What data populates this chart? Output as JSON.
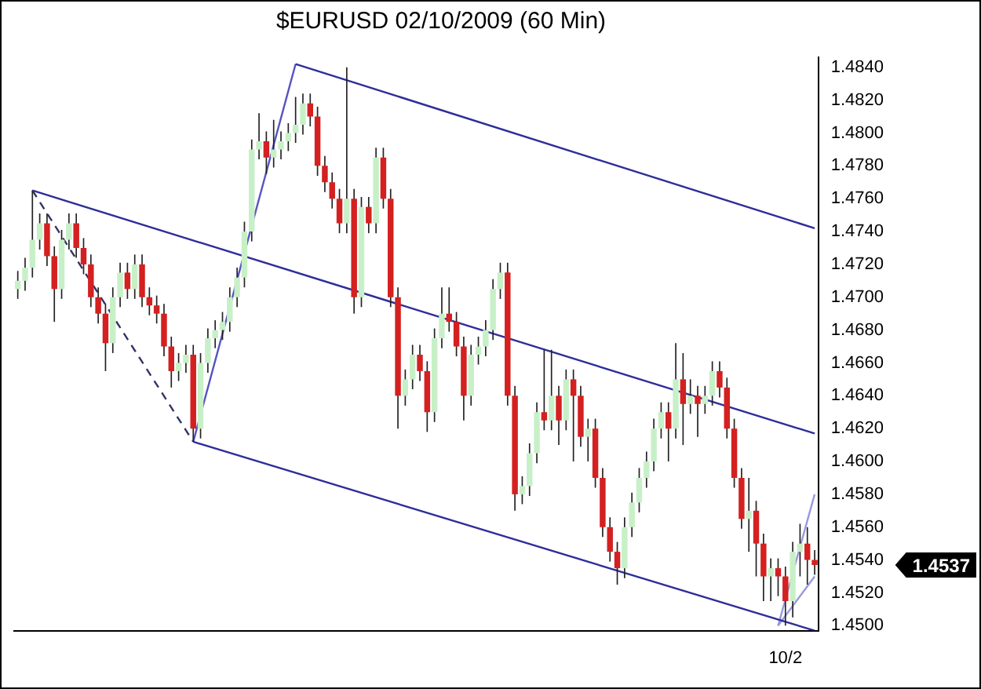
{
  "chart_data": {
    "type": "candlestick",
    "title": "$EURUSD  02/10/2009 (60 Min)",
    "categories": [
      null,
      null,
      null,
      null,
      null,
      null,
      null,
      null,
      null,
      null,
      null,
      null,
      null,
      null,
      null,
      null,
      null,
      null,
      null,
      null,
      null,
      null,
      null,
      null,
      null,
      null,
      null,
      null,
      null,
      null,
      null,
      null,
      null,
      null,
      null,
      null,
      null,
      null,
      null,
      null,
      null,
      null,
      null,
      null,
      null,
      null,
      null,
      null,
      null,
      null,
      null,
      null,
      null,
      null,
      null,
      null,
      null,
      null,
      null,
      null,
      null,
      null,
      null,
      null,
      null,
      null,
      null,
      null,
      null,
      null,
      null,
      null,
      null,
      null,
      null,
      null,
      null,
      null,
      null,
      null,
      null,
      null,
      null,
      null,
      null,
      null,
      null,
      null,
      null,
      null,
      null,
      null,
      null,
      null,
      null,
      null,
      null,
      null,
      null,
      null,
      null,
      null,
      null,
      null,
      null,
      "10/2",
      null,
      null,
      null,
      null
    ],
    "ohlc": [
      [
        1.4705,
        1.4716,
        1.4699,
        1.471
      ],
      [
        1.471,
        1.4724,
        1.4704,
        1.4718
      ],
      [
        1.4718,
        1.4765,
        1.4712,
        1.4735
      ],
      [
        1.4735,
        1.4751,
        1.4729,
        1.4745
      ],
      [
        1.4745,
        1.4751,
        1.4719,
        1.4725
      ],
      [
        1.4725,
        1.4731,
        1.4685,
        1.4705
      ],
      [
        1.4705,
        1.4741,
        1.4699,
        1.4735
      ],
      [
        1.4735,
        1.4751,
        1.4729,
        1.4745
      ],
      [
        1.4745,
        1.4751,
        1.4724,
        1.473
      ],
      [
        1.473,
        1.4736,
        1.4714,
        1.472
      ],
      [
        1.472,
        1.4726,
        1.4694,
        1.47
      ],
      [
        1.47,
        1.4706,
        1.4684,
        1.469
      ],
      [
        1.469,
        1.4696,
        1.4655,
        1.4672
      ],
      [
        1.4672,
        1.4706,
        1.4666,
        1.47
      ],
      [
        1.47,
        1.4721,
        1.4694,
        1.4715
      ],
      [
        1.4715,
        1.4721,
        1.4699,
        1.4705
      ],
      [
        1.4705,
        1.4726,
        1.4699,
        1.472
      ],
      [
        1.472,
        1.4726,
        1.4694,
        1.47
      ],
      [
        1.47,
        1.4706,
        1.4689,
        1.4695
      ],
      [
        1.4695,
        1.4701,
        1.4684,
        1.469
      ],
      [
        1.469,
        1.4696,
        1.4664,
        1.467
      ],
      [
        1.467,
        1.4676,
        1.4645,
        1.4655
      ],
      [
        1.4655,
        1.4666,
        1.4649,
        1.466
      ],
      [
        1.466,
        1.4671,
        1.4654,
        1.4665
      ],
      [
        1.4665,
        1.4671,
        1.4612,
        1.462
      ],
      [
        1.462,
        1.4666,
        1.4614,
        1.466
      ],
      [
        1.466,
        1.4681,
        1.4654,
        1.4675
      ],
      [
        1.4675,
        1.4686,
        1.4669,
        1.468
      ],
      [
        1.468,
        1.4691,
        1.4674,
        1.4685
      ],
      [
        1.4685,
        1.4706,
        1.4679,
        1.47
      ],
      [
        1.47,
        1.4718,
        1.4694,
        1.4712
      ],
      [
        1.4712,
        1.4746,
        1.4706,
        1.474
      ],
      [
        1.474,
        1.4796,
        1.4734,
        1.479
      ],
      [
        1.479,
        1.4812,
        1.4784,
        1.4795
      ],
      [
        1.4795,
        1.4801,
        1.4775,
        1.4785
      ],
      [
        1.4785,
        1.4808,
        1.4779,
        1.479
      ],
      [
        1.479,
        1.4801,
        1.4784,
        1.4795
      ],
      [
        1.4795,
        1.4806,
        1.4789,
        1.48
      ],
      [
        1.48,
        1.4822,
        1.4794,
        1.4805
      ],
      [
        1.4805,
        1.4824,
        1.4799,
        1.4818
      ],
      [
        1.4818,
        1.4824,
        1.4804,
        1.481
      ],
      [
        1.481,
        1.4816,
        1.4774,
        1.478
      ],
      [
        1.478,
        1.4786,
        1.4764,
        1.477
      ],
      [
        1.477,
        1.4776,
        1.4754,
        1.476
      ],
      [
        1.476,
        1.4766,
        1.4739,
        1.4745
      ],
      [
        1.4745,
        1.484,
        1.4739,
        1.476
      ],
      [
        1.476,
        1.4766,
        1.469,
        1.47
      ],
      [
        1.47,
        1.4761,
        1.4694,
        1.4755
      ],
      [
        1.4755,
        1.4761,
        1.4739,
        1.4745
      ],
      [
        1.4745,
        1.4791,
        1.4739,
        1.4785
      ],
      [
        1.4785,
        1.4791,
        1.4754,
        1.476
      ],
      [
        1.476,
        1.4766,
        1.4694,
        1.47
      ],
      [
        1.47,
        1.4706,
        1.462,
        1.464
      ],
      [
        1.464,
        1.4656,
        1.4634,
        1.465
      ],
      [
        1.465,
        1.4671,
        1.4644,
        1.4665
      ],
      [
        1.4665,
        1.4671,
        1.4649,
        1.4655
      ],
      [
        1.4655,
        1.4661,
        1.4618,
        1.463
      ],
      [
        1.463,
        1.4681,
        1.4624,
        1.4675
      ],
      [
        1.4675,
        1.4706,
        1.4669,
        1.469
      ],
      [
        1.469,
        1.4706,
        1.4679,
        1.4685
      ],
      [
        1.4685,
        1.4691,
        1.4664,
        1.467
      ],
      [
        1.467,
        1.4676,
        1.4625,
        1.464
      ],
      [
        1.464,
        1.4671,
        1.4634,
        1.4665
      ],
      [
        1.4665,
        1.4676,
        1.4659,
        1.467
      ],
      [
        1.467,
        1.4686,
        1.4664,
        1.468
      ],
      [
        1.468,
        1.4711,
        1.4674,
        1.4705
      ],
      [
        1.4705,
        1.4721,
        1.4699,
        1.4715
      ],
      [
        1.4715,
        1.4721,
        1.4634,
        1.464
      ],
      [
        1.464,
        1.4646,
        1.457,
        1.458
      ],
      [
        1.458,
        1.4591,
        1.4574,
        1.4585
      ],
      [
        1.4585,
        1.4611,
        1.4579,
        1.4605
      ],
      [
        1.4605,
        1.4636,
        1.4599,
        1.463
      ],
      [
        1.463,
        1.4668,
        1.4619,
        1.4625
      ],
      [
        1.4625,
        1.4668,
        1.4619,
        1.464
      ],
      [
        1.464,
        1.4646,
        1.461,
        1.4625
      ],
      [
        1.4625,
        1.4656,
        1.4619,
        1.465
      ],
      [
        1.465,
        1.4656,
        1.46,
        1.464
      ],
      [
        1.464,
        1.4646,
        1.4609,
        1.4615
      ],
      [
        1.4615,
        1.4626,
        1.46,
        1.462
      ],
      [
        1.462,
        1.4626,
        1.4584,
        1.459
      ],
      [
        1.459,
        1.4596,
        1.4554,
        1.456
      ],
      [
        1.456,
        1.4566,
        1.4539,
        1.4545
      ],
      [
        1.4545,
        1.4551,
        1.4525,
        1.4535
      ],
      [
        1.4535,
        1.4566,
        1.4529,
        1.456
      ],
      [
        1.456,
        1.4581,
        1.4554,
        1.4575
      ],
      [
        1.4575,
        1.4596,
        1.4569,
        1.459
      ],
      [
        1.459,
        1.4606,
        1.4584,
        1.46
      ],
      [
        1.46,
        1.4626,
        1.4594,
        1.462
      ],
      [
        1.462,
        1.4636,
        1.4614,
        1.463
      ],
      [
        1.463,
        1.4636,
        1.46,
        1.462
      ],
      [
        1.462,
        1.4672,
        1.4614,
        1.465
      ],
      [
        1.465,
        1.4666,
        1.461,
        1.4635
      ],
      [
        1.4635,
        1.465,
        1.4629,
        1.464
      ],
      [
        1.464,
        1.4646,
        1.4615,
        1.4635
      ],
      [
        1.4635,
        1.4646,
        1.4629,
        1.464
      ],
      [
        1.464,
        1.4661,
        1.4634,
        1.4655
      ],
      [
        1.4655,
        1.4661,
        1.4639,
        1.4645
      ],
      [
        1.4645,
        1.4651,
        1.4614,
        1.462
      ],
      [
        1.462,
        1.4626,
        1.4584,
        1.459
      ],
      [
        1.459,
        1.4596,
        1.4559,
        1.4565
      ],
      [
        1.4565,
        1.459,
        1.4545,
        1.457
      ],
      [
        1.457,
        1.4576,
        1.453,
        1.455
      ],
      [
        1.455,
        1.4556,
        1.4515,
        1.453
      ],
      [
        1.453,
        1.4541,
        1.4515,
        1.4535
      ],
      [
        1.4535,
        1.4541,
        1.4518,
        1.453
      ],
      [
        1.453,
        1.4536,
        1.45,
        1.4515
      ],
      [
        1.4515,
        1.4551,
        1.4505,
        1.4545
      ],
      [
        1.4545,
        1.4562,
        1.453,
        1.455
      ],
      [
        1.455,
        1.456,
        1.4525,
        1.454
      ],
      [
        1.454,
        1.4546,
        1.4531,
        1.4537
      ]
    ],
    "series": [
      {
        "type": "line",
        "color": "#2e2e9a",
        "values": [
          null,
          null,
          null,
          null,
          null,
          null,
          null,
          null,
          null,
          null,
          null,
          null,
          null,
          null,
          null,
          null,
          null,
          null,
          null,
          null,
          null,
          null,
          null,
          null,
          null,
          null,
          null,
          null,
          null,
          null,
          null,
          null,
          null,
          null,
          null,
          null,
          null,
          null,
          1.4842,
          null,
          null,
          null,
          null,
          null,
          null,
          null,
          null,
          null,
          null,
          null,
          null,
          null,
          null,
          null,
          null,
          null,
          null,
          null,
          null,
          null,
          null,
          null,
          null,
          null,
          null,
          null,
          null,
          null,
          null,
          null,
          null,
          null,
          null,
          null,
          null,
          null,
          null,
          null,
          null,
          null,
          null,
          null,
          null,
          null,
          null,
          null,
          null,
          null,
          null,
          null,
          null,
          null,
          null,
          null,
          null,
          null,
          null,
          null,
          null,
          null,
          null,
          null,
          null,
          null,
          null,
          null,
          null,
          null,
          null,
          1.4742
        ]
      },
      {
        "type": "line",
        "color": "#2e2e9a",
        "values": [
          null,
          null,
          1.4765,
          null,
          null,
          null,
          null,
          null,
          null,
          null,
          null,
          null,
          null,
          null,
          null,
          null,
          null,
          null,
          null,
          null,
          null,
          null,
          null,
          null,
          null,
          null,
          null,
          null,
          null,
          null,
          null,
          null,
          null,
          null,
          null,
          null,
          null,
          null,
          null,
          null,
          null,
          null,
          null,
          null,
          null,
          null,
          null,
          null,
          null,
          null,
          null,
          null,
          null,
          null,
          null,
          null,
          null,
          null,
          null,
          null,
          null,
          null,
          null,
          null,
          null,
          null,
          null,
          null,
          null,
          null,
          null,
          null,
          null,
          null,
          null,
          null,
          null,
          null,
          null,
          null,
          null,
          null,
          null,
          null,
          null,
          null,
          null,
          null,
          null,
          null,
          null,
          null,
          null,
          null,
          null,
          null,
          null,
          null,
          null,
          null,
          null,
          null,
          null,
          null,
          null,
          null,
          null,
          null,
          null,
          1.4617
        ]
      },
      {
        "type": "line",
        "color": "#2e2e9a",
        "values": [
          null,
          null,
          null,
          null,
          null,
          null,
          null,
          null,
          null,
          null,
          null,
          null,
          null,
          null,
          null,
          null,
          null,
          null,
          null,
          null,
          null,
          null,
          null,
          null,
          1.4612,
          null,
          null,
          null,
          null,
          null,
          null,
          null,
          null,
          null,
          null,
          null,
          null,
          null,
          null,
          null,
          null,
          null,
          null,
          null,
          null,
          null,
          null,
          null,
          null,
          null,
          null,
          null,
          null,
          null,
          null,
          null,
          null,
          null,
          null,
          null,
          null,
          null,
          null,
          null,
          null,
          null,
          null,
          null,
          null,
          null,
          null,
          null,
          null,
          null,
          null,
          null,
          null,
          null,
          null,
          null,
          null,
          null,
          null,
          null,
          null,
          null,
          null,
          null,
          null,
          null,
          null,
          null,
          null,
          null,
          null,
          null,
          null,
          null,
          null,
          null,
          null,
          null,
          null,
          null,
          null,
          null,
          null,
          null,
          null,
          1.4497
        ]
      },
      {
        "type": "line",
        "color": "#5555c0",
        "values": [
          null,
          null,
          null,
          null,
          null,
          null,
          null,
          null,
          null,
          null,
          null,
          null,
          null,
          null,
          null,
          null,
          null,
          null,
          null,
          null,
          null,
          null,
          null,
          null,
          1.4612,
          null,
          null,
          null,
          null,
          null,
          null,
          null,
          null,
          null,
          null,
          null,
          null,
          null,
          1.4842,
          null,
          null,
          null,
          null,
          null,
          null,
          null,
          null,
          null,
          null,
          null,
          null,
          null,
          null,
          null,
          null,
          null,
          null,
          null,
          null,
          null,
          null,
          null,
          null,
          null,
          null,
          null,
          null,
          null,
          null,
          null,
          null,
          null,
          null,
          null,
          null,
          null,
          null,
          null,
          null,
          null,
          null,
          null,
          null,
          null,
          null,
          null,
          null,
          null,
          null,
          null,
          null,
          null,
          null,
          null,
          null,
          null,
          null,
          null,
          null,
          null,
          null,
          null,
          null,
          null,
          null,
          null,
          null,
          null,
          null,
          null
        ]
      },
      {
        "type": "line",
        "color": "#333366",
        "line_style": "dashed",
        "values": [
          null,
          null,
          1.4765,
          null,
          null,
          null,
          null,
          null,
          null,
          null,
          null,
          null,
          null,
          null,
          null,
          null,
          null,
          null,
          null,
          null,
          null,
          null,
          null,
          null,
          1.4612,
          null,
          null,
          null,
          null,
          null,
          null,
          null,
          null,
          null,
          null,
          null,
          null,
          null,
          null,
          null,
          null,
          null,
          null,
          null,
          null,
          null,
          null,
          null,
          null,
          null,
          null,
          null,
          null,
          null,
          null,
          null,
          null,
          null,
          null,
          null,
          null,
          null,
          null,
          null,
          null,
          null,
          null,
          null,
          null,
          null,
          null,
          null,
          null,
          null,
          null,
          null,
          null,
          null,
          null,
          null,
          null,
          null,
          null,
          null,
          null,
          null,
          null,
          null,
          null,
          null,
          null,
          null,
          null,
          null,
          null,
          null,
          null,
          null,
          null,
          null,
          null,
          null,
          null,
          null,
          null,
          null,
          null,
          null,
          null,
          null
        ]
      },
      {
        "type": "line",
        "color": "#9999dd",
        "values": [
          null,
          null,
          null,
          null,
          null,
          null,
          null,
          null,
          null,
          null,
          null,
          null,
          null,
          null,
          null,
          null,
          null,
          null,
          null,
          null,
          null,
          null,
          null,
          null,
          null,
          null,
          null,
          null,
          null,
          null,
          null,
          null,
          null,
          null,
          null,
          null,
          null,
          null,
          null,
          null,
          null,
          null,
          null,
          null,
          null,
          null,
          null,
          null,
          null,
          null,
          null,
          null,
          null,
          null,
          null,
          null,
          null,
          null,
          null,
          null,
          null,
          null,
          null,
          null,
          null,
          null,
          null,
          null,
          null,
          null,
          null,
          null,
          null,
          null,
          null,
          null,
          null,
          null,
          null,
          null,
          null,
          null,
          null,
          null,
          null,
          null,
          null,
          null,
          null,
          null,
          null,
          null,
          null,
          null,
          null,
          null,
          null,
          null,
          null,
          null,
          null,
          null,
          null,
          null,
          1.45,
          null,
          null,
          null,
          null,
          1.458
        ]
      },
      {
        "type": "line",
        "color": "#9999dd",
        "values": [
          null,
          null,
          null,
          null,
          null,
          null,
          null,
          null,
          null,
          null,
          null,
          null,
          null,
          null,
          null,
          null,
          null,
          null,
          null,
          null,
          null,
          null,
          null,
          null,
          null,
          null,
          null,
          null,
          null,
          null,
          null,
          null,
          null,
          null,
          null,
          null,
          null,
          null,
          null,
          null,
          null,
          null,
          null,
          null,
          null,
          null,
          null,
          null,
          null,
          null,
          null,
          null,
          null,
          null,
          null,
          null,
          null,
          null,
          null,
          null,
          null,
          null,
          null,
          null,
          null,
          null,
          null,
          null,
          null,
          null,
          null,
          null,
          null,
          null,
          null,
          null,
          null,
          null,
          null,
          null,
          null,
          null,
          null,
          null,
          null,
          null,
          null,
          null,
          null,
          null,
          null,
          null,
          null,
          null,
          null,
          null,
          null,
          null,
          null,
          null,
          null,
          null,
          null,
          null,
          1.45,
          null,
          null,
          null,
          null,
          1.453
        ]
      }
    ],
    "ylim": [
      1.4497,
      1.4846
    ],
    "yticks": [
      {
        "value": 1.45,
        "label": "1.4500"
      },
      {
        "value": 1.452,
        "label": "1.4520"
      },
      {
        "value": 1.454,
        "label": "1.4540"
      },
      {
        "value": 1.456,
        "label": "1.4560"
      },
      {
        "value": 1.458,
        "label": "1.4580"
      },
      {
        "value": 1.46,
        "label": "1.4600"
      },
      {
        "value": 1.462,
        "label": "1.4620"
      },
      {
        "value": 1.464,
        "label": "1.4640"
      },
      {
        "value": 1.466,
        "label": "1.4660"
      },
      {
        "value": 1.468,
        "label": "1.4680"
      },
      {
        "value": 1.47,
        "label": "1.4700"
      },
      {
        "value": 1.472,
        "label": "1.4720"
      },
      {
        "value": 1.474,
        "label": "1.4740"
      },
      {
        "value": 1.476,
        "label": "1.4760"
      },
      {
        "value": 1.478,
        "label": "1.4780"
      },
      {
        "value": 1.48,
        "label": "1.4800"
      },
      {
        "value": 1.482,
        "label": "1.4820"
      },
      {
        "value": 1.484,
        "label": "1.4840"
      }
    ],
    "annotations": [
      "1.4537"
    ],
    "legend": false
  }
}
